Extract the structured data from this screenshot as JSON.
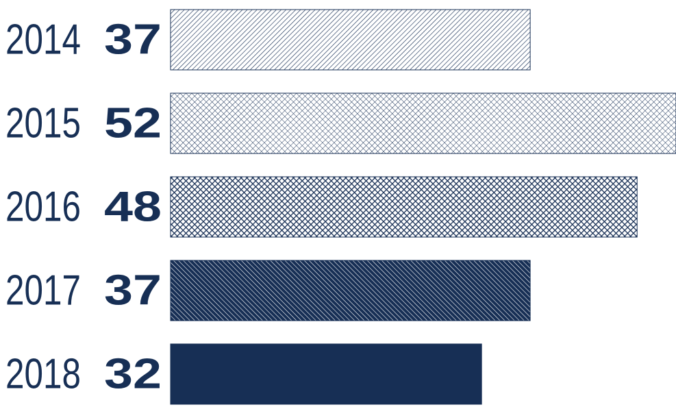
{
  "colors": {
    "navy": "#172f55",
    "background": "#ffffff"
  },
  "chart_data": {
    "type": "bar",
    "orientation": "horizontal",
    "categories": [
      "2014",
      "2015",
      "2016",
      "2017",
      "2018"
    ],
    "values": [
      37,
      52,
      48,
      37,
      32
    ],
    "value_labels": [
      "37",
      "52",
      "48",
      "37",
      "32"
    ],
    "fill_patterns": [
      "sparse-diagonal",
      "light-crosshatch",
      "dense-crosshatch",
      "dense-diagonal",
      "solid"
    ],
    "xlim": [
      0,
      52
    ],
    "grid": false,
    "legend": "none"
  }
}
